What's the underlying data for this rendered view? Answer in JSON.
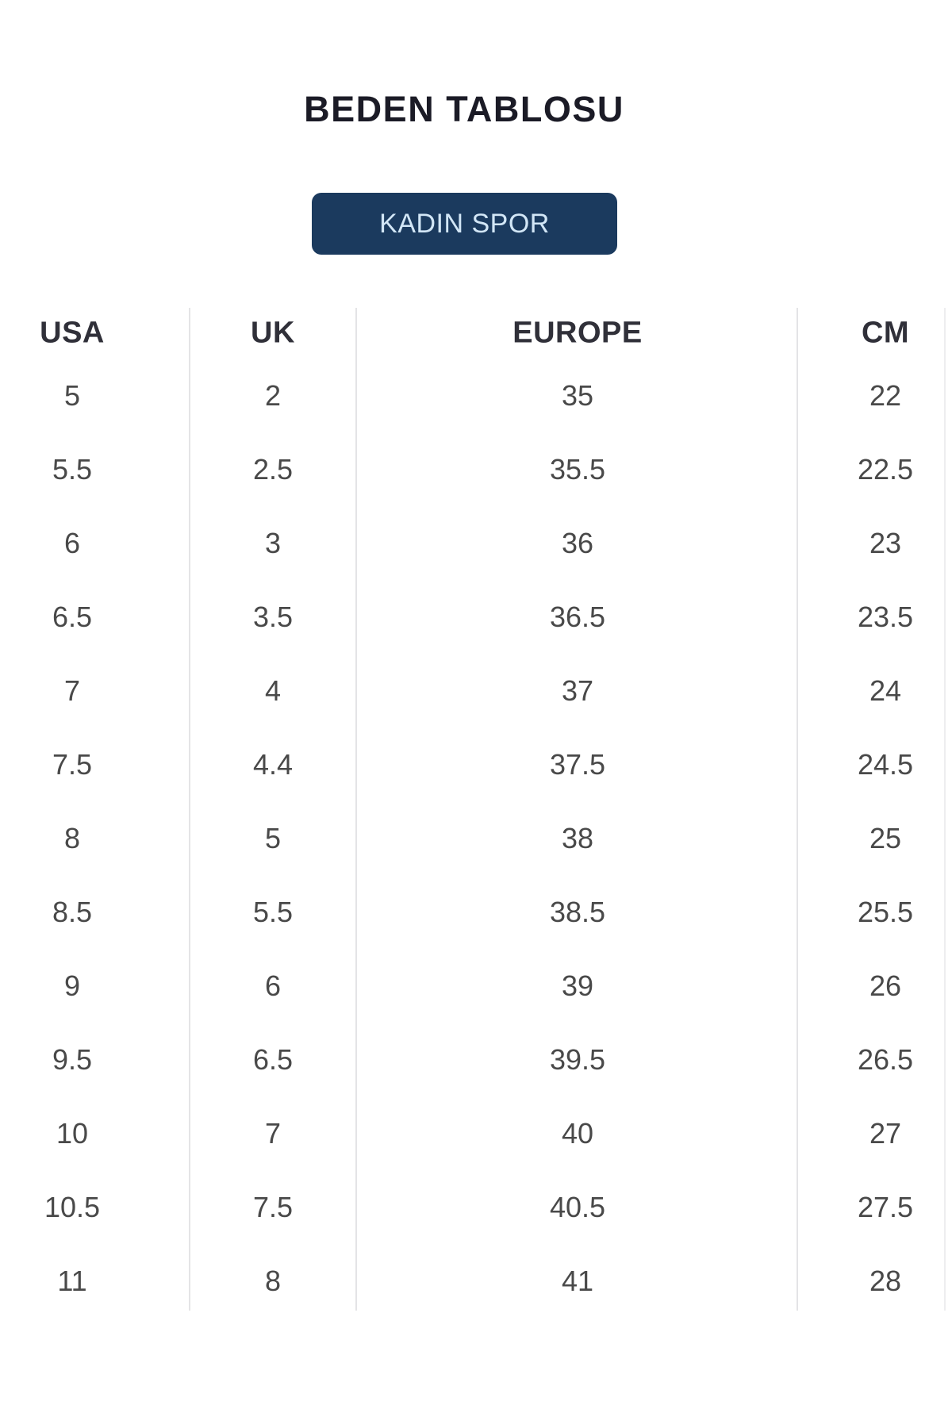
{
  "header": {
    "title": "BEDEN TABLOSU",
    "category_button_label": "KADIN SPOR"
  },
  "table": {
    "headers": [
      "USA",
      "UK",
      "EUROPE",
      "CM"
    ],
    "rows": [
      [
        "5",
        "2",
        "35",
        "22"
      ],
      [
        "5.5",
        "2.5",
        "35.5",
        "22.5"
      ],
      [
        "6",
        "3",
        "36",
        "23"
      ],
      [
        "6.5",
        "3.5",
        "36.5",
        "23.5"
      ],
      [
        "7",
        "4",
        "37",
        "24"
      ],
      [
        "7.5",
        "4.4",
        "37.5",
        "24.5"
      ],
      [
        "8",
        "5",
        "38",
        "25"
      ],
      [
        "8.5",
        "5.5",
        "38.5",
        "25.5"
      ],
      [
        "9",
        "6",
        "39",
        "26"
      ],
      [
        "9.5",
        "6.5",
        "39.5",
        "26.5"
      ],
      [
        "10",
        "7",
        "40",
        "27"
      ],
      [
        "10.5",
        "7.5",
        "40.5",
        "27.5"
      ],
      [
        "11",
        "8",
        "41",
        "28"
      ]
    ]
  },
  "colors": {
    "accent_navy": "#1b3a5e",
    "button_text": "#d2e6f6",
    "title_text": "#1b1b26",
    "header_text": "#303039",
    "cell_text": "#494949",
    "divider": "#e4e4e6"
  }
}
